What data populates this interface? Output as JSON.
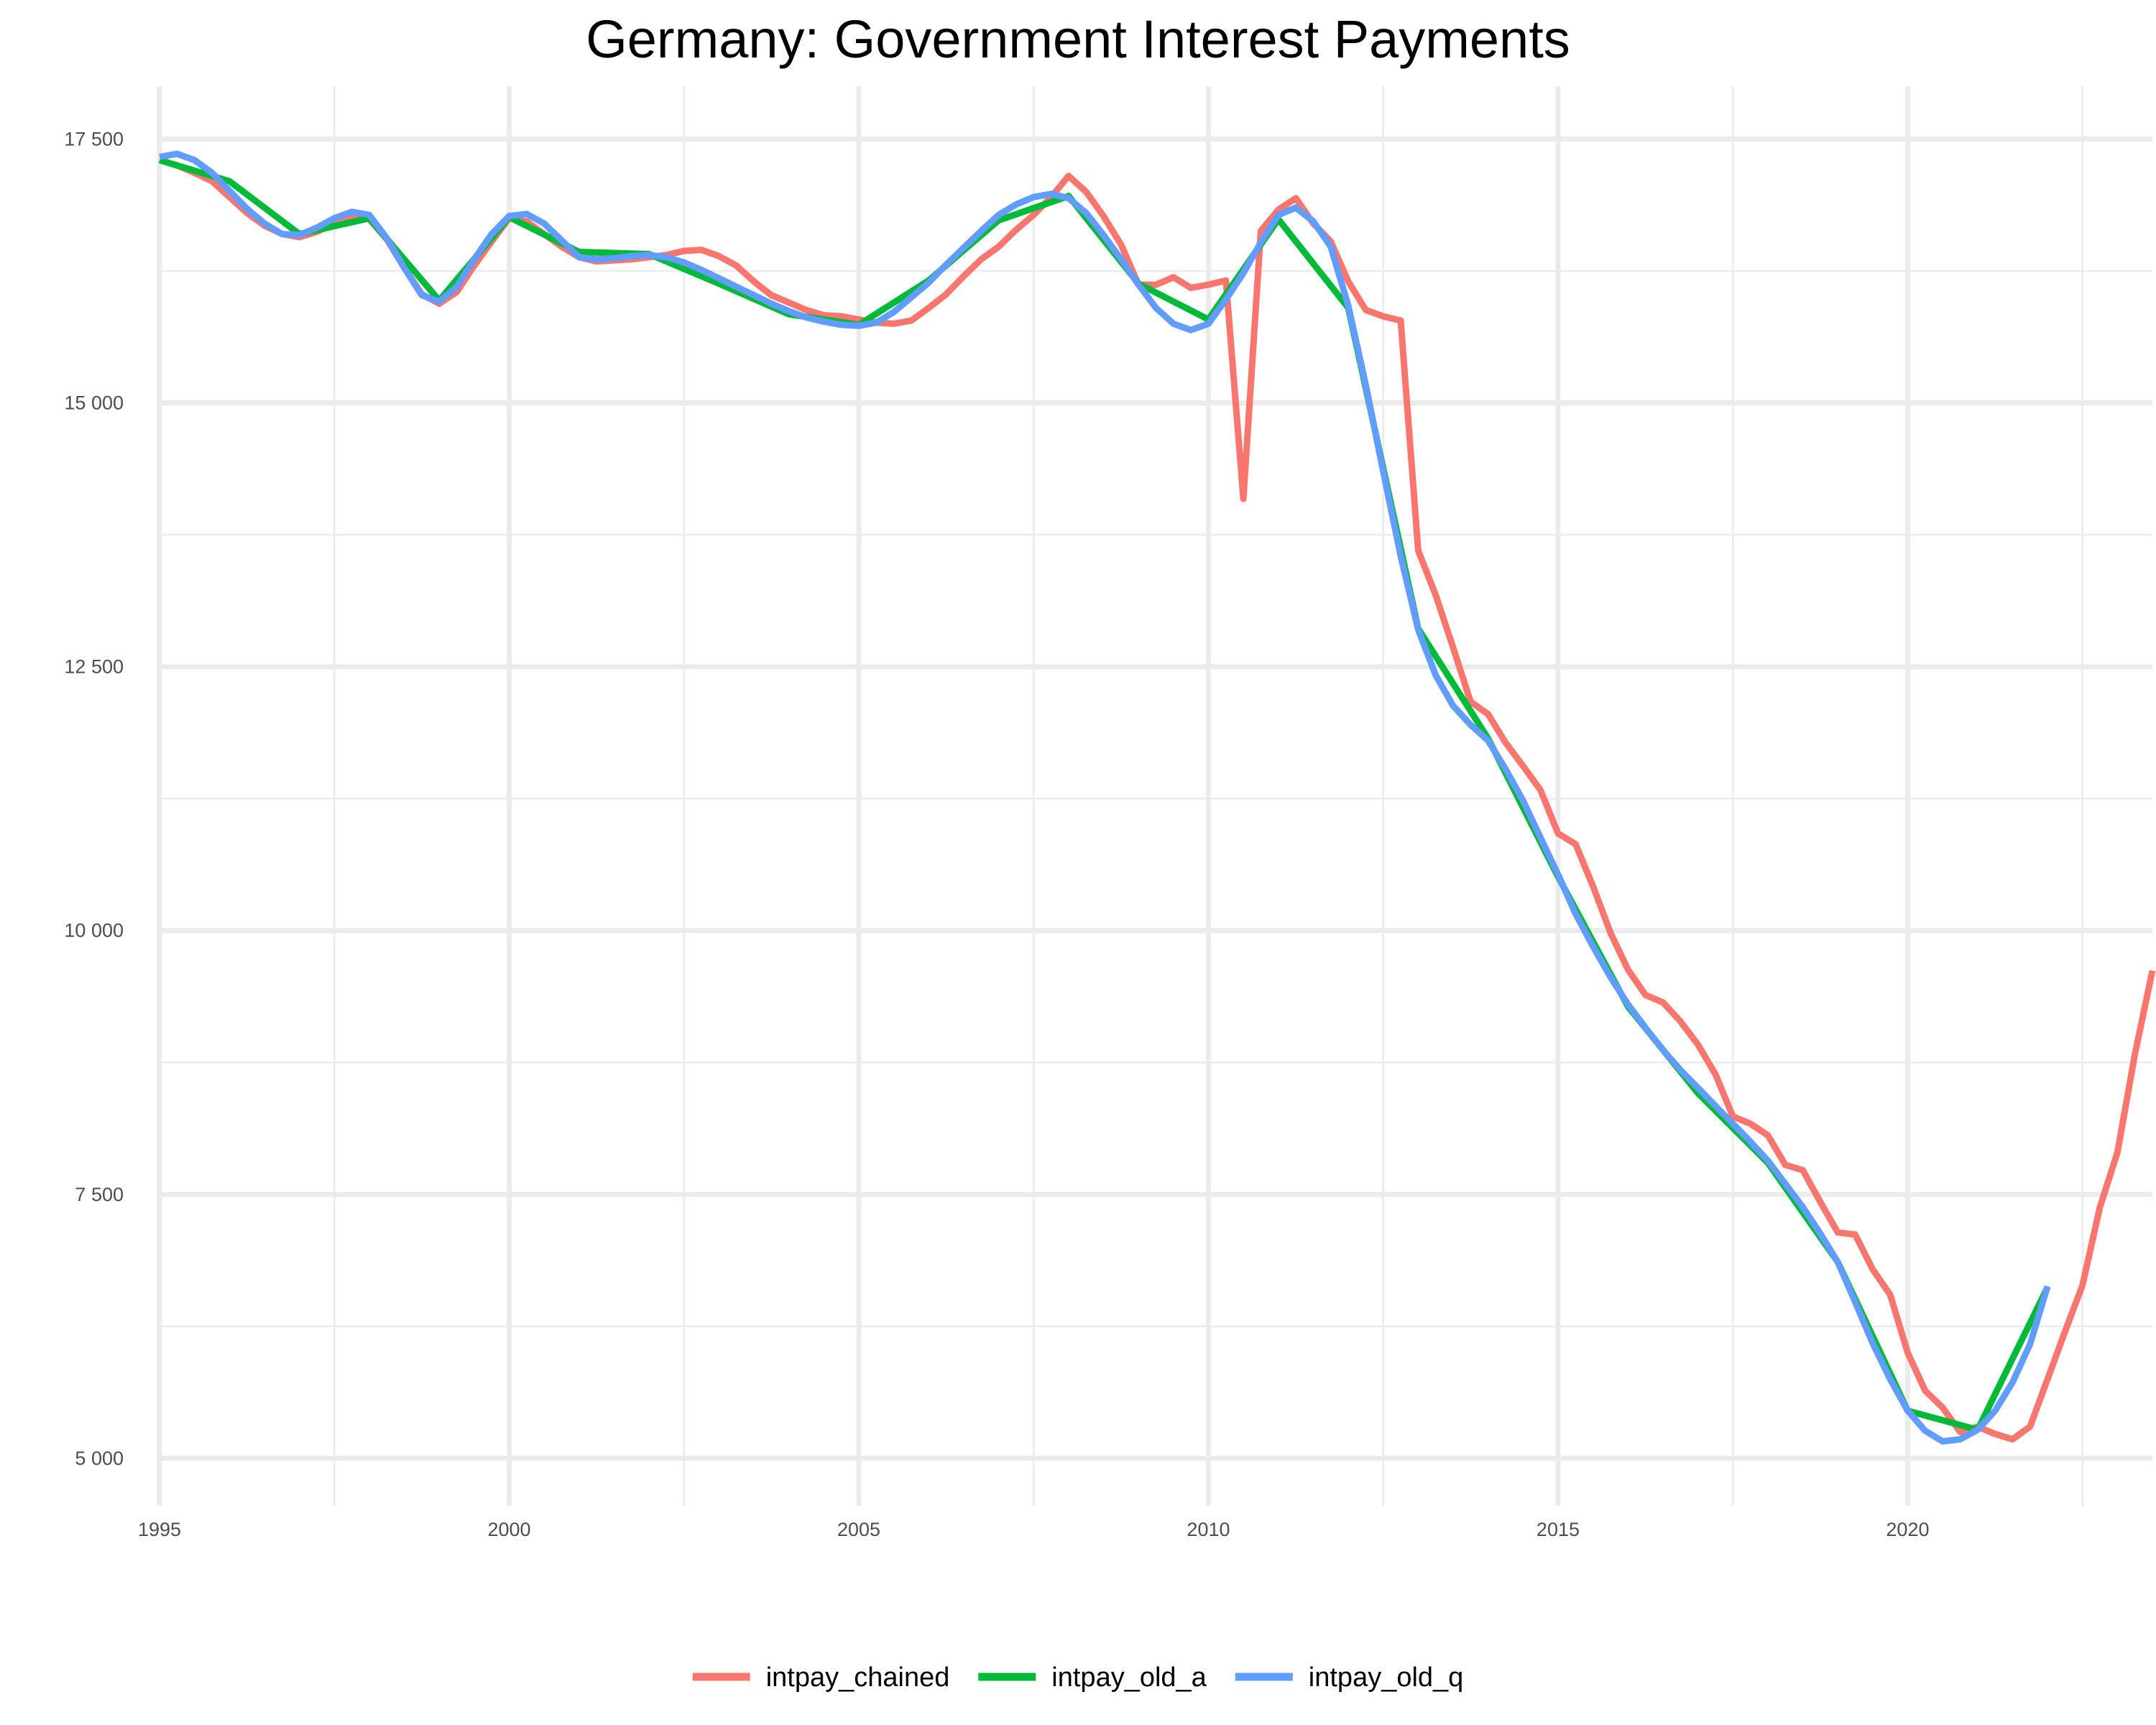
{
  "chart_data": {
    "type": "line",
    "title": "Germany: Government Interest Payments",
    "xlabel": "",
    "ylabel": "",
    "xlim": [
      1995,
      2023.5
    ],
    "ylim": [
      4550,
      18000
    ],
    "x_ticks": [
      1995,
      2000,
      2005,
      2010,
      2015,
      2020
    ],
    "x_tick_labels": [
      "1995",
      "2000",
      "2005",
      "2010",
      "2015",
      "2020"
    ],
    "x_minor_ticks": [
      1997.5,
      2002.5,
      2007.5,
      2012.5,
      2017.5,
      2022.5
    ],
    "y_ticks": [
      5000,
      7500,
      10000,
      12500,
      15000,
      17500
    ],
    "y_tick_labels": [
      "5 000",
      "7 500",
      "10 000",
      "12 500",
      "15 000",
      "17 500"
    ],
    "y_minor_ticks": [
      6250,
      8750,
      11250,
      13750,
      16250
    ],
    "grid": true,
    "legend_position": "bottom",
    "series": [
      {
        "name": "intpay_chained",
        "color": "#F8766D",
        "x": [
          1995,
          1995.25,
          1995.5,
          1995.75,
          1996,
          1996.25,
          1996.5,
          1996.75,
          1997,
          1997.25,
          1997.5,
          1997.75,
          1998,
          1998.25,
          1998.5,
          1998.75,
          1999,
          1999.25,
          1999.5,
          1999.75,
          2000,
          2000.25,
          2000.5,
          2000.75,
          2001,
          2001.25,
          2001.5,
          2001.75,
          2002,
          2002.25,
          2002.5,
          2002.75,
          2003,
          2003.25,
          2003.5,
          2003.75,
          2004,
          2004.25,
          2004.5,
          2004.75,
          2005,
          2005.25,
          2005.5,
          2005.75,
          2006,
          2006.25,
          2006.5,
          2006.75,
          2007,
          2007.25,
          2007.5,
          2007.75,
          2008,
          2008.25,
          2008.5,
          2008.75,
          2009,
          2009.25,
          2009.5,
          2009.75,
          2010,
          2010.25,
          2010.5,
          2010.75,
          2011,
          2011.25,
          2011.5,
          2011.75,
          2012,
          2012.25,
          2012.5,
          2012.75,
          2013,
          2013.25,
          2013.5,
          2013.75,
          2014,
          2014.25,
          2014.5,
          2014.75,
          2015,
          2015.25,
          2015.5,
          2015.75,
          2016,
          2016.25,
          2016.5,
          2016.75,
          2017,
          2017.25,
          2017.5,
          2017.75,
          2018,
          2018.25,
          2018.5,
          2018.75,
          2019,
          2019.25,
          2019.5,
          2019.75,
          2020,
          2020.25,
          2020.5,
          2020.75,
          2021,
          2021.25,
          2021.5,
          2021.75,
          2022,
          2022.25,
          2022.5,
          2022.75,
          2023,
          2023.25,
          2023.5
        ],
        "y": [
          17300,
          17250,
          17180,
          17100,
          16950,
          16800,
          16680,
          16600,
          16570,
          16620,
          16700,
          16760,
          16740,
          16550,
          16280,
          16030,
          15940,
          16050,
          16300,
          16530,
          16750,
          16720,
          16600,
          16480,
          16380,
          16340,
          16350,
          16360,
          16380,
          16400,
          16440,
          16450,
          16390,
          16300,
          16150,
          16020,
          15950,
          15880,
          15830,
          15820,
          15790,
          15760,
          15750,
          15780,
          15900,
          16030,
          16200,
          16360,
          16480,
          16640,
          16780,
          16950,
          17150,
          17000,
          16770,
          16500,
          16120,
          16120,
          16190,
          16090,
          16120,
          16160,
          14090,
          16630,
          16830,
          16940,
          16700,
          16530,
          16150,
          15880,
          15820,
          15780,
          13600,
          13180,
          12680,
          12170,
          12050,
          11780,
          11560,
          11330,
          10920,
          10820,
          10420,
          9980,
          9630,
          9390,
          9320,
          9140,
          8920,
          8640,
          8240,
          8170,
          8060,
          7780,
          7730,
          7430,
          7140,
          7120,
          6790,
          6550,
          6000,
          5640,
          5480,
          5250,
          5300,
          5230,
          5180,
          5300,
          5750,
          6200,
          6640,
          7380,
          7900,
          8830,
          9620
        ]
      },
      {
        "name": "intpay_old_a",
        "color": "#00BA38",
        "x": [
          1995,
          1996,
          1997,
          1998,
          1999,
          2000,
          2001,
          2002,
          2003,
          2004,
          2005,
          2006,
          2007,
          2008,
          2009,
          2010,
          2011,
          2012,
          2013,
          2014,
          2015,
          2016,
          2017,
          2018,
          2019,
          2020,
          2021,
          2022
        ],
        "y": [
          17300,
          17100,
          16600,
          16750,
          15970,
          16760,
          16430,
          16410,
          16130,
          15840,
          15740,
          16160,
          16730,
          16960,
          16130,
          15790,
          16740,
          15900,
          12860,
          11820,
          10510,
          9280,
          8460,
          7800,
          6860,
          5450,
          5270,
          6620
        ]
      },
      {
        "name": "intpay_old_q",
        "color": "#619CFF",
        "x": [
          1995,
          1995.25,
          1995.5,
          1995.75,
          1996,
          1996.25,
          1996.5,
          1996.75,
          1997,
          1997.25,
          1997.5,
          1997.75,
          1998,
          1998.25,
          1998.5,
          1998.75,
          1999,
          1999.25,
          1999.5,
          1999.75,
          2000,
          2000.25,
          2000.5,
          2000.75,
          2001,
          2001.25,
          2001.5,
          2001.75,
          2002,
          2002.25,
          2002.5,
          2002.75,
          2003,
          2003.25,
          2003.5,
          2003.75,
          2004,
          2004.25,
          2004.5,
          2004.75,
          2005,
          2005.25,
          2005.5,
          2005.75,
          2006,
          2006.25,
          2006.5,
          2006.75,
          2007,
          2007.25,
          2007.5,
          2007.75,
          2008,
          2008.25,
          2008.5,
          2008.75,
          2009,
          2009.25,
          2009.5,
          2009.75,
          2010,
          2010.25,
          2010.5,
          2010.75,
          2011,
          2011.25,
          2011.5,
          2011.75,
          2012,
          2012.25,
          2012.5,
          2012.75,
          2013,
          2013.25,
          2013.5,
          2013.75,
          2014,
          2014.25,
          2014.5,
          2014.75,
          2015,
          2015.25,
          2015.5,
          2015.75,
          2016,
          2016.25,
          2016.5,
          2016.75,
          2017,
          2017.25,
          2017.5,
          2017.75,
          2018,
          2018.25,
          2018.5,
          2018.75,
          2019,
          2019.25,
          2019.5,
          2019.75,
          2020,
          2020.25,
          2020.5,
          2020.75,
          2021,
          2021.25,
          2021.5,
          2021.75,
          2022
        ],
        "y": [
          17330,
          17360,
          17300,
          17180,
          17010,
          16840,
          16700,
          16600,
          16590,
          16660,
          16750,
          16810,
          16780,
          16560,
          16280,
          16020,
          15960,
          16100,
          16360,
          16600,
          16770,
          16790,
          16700,
          16540,
          16380,
          16360,
          16370,
          16390,
          16400,
          16380,
          16330,
          16260,
          16180,
          16100,
          16020,
          15940,
          15870,
          15810,
          15770,
          15740,
          15730,
          15760,
          15860,
          16000,
          16140,
          16310,
          16470,
          16630,
          16780,
          16880,
          16950,
          16980,
          16940,
          16800,
          16590,
          16360,
          16120,
          15900,
          15750,
          15690,
          15750,
          15980,
          16230,
          16520,
          16780,
          16850,
          16720,
          16480,
          15920,
          15170,
          14350,
          13550,
          12850,
          12420,
          12130,
          11950,
          11800,
          11530,
          11230,
          10880,
          10530,
          10160,
          9850,
          9560,
          9300,
          9080,
          8870,
          8680,
          8510,
          8340,
          8170,
          8000,
          7820,
          7600,
          7380,
          7130,
          6860,
          6480,
          6090,
          5750,
          5450,
          5260,
          5160,
          5180,
          5270,
          5450,
          5720,
          6080,
          6630
        ]
      }
    ]
  }
}
